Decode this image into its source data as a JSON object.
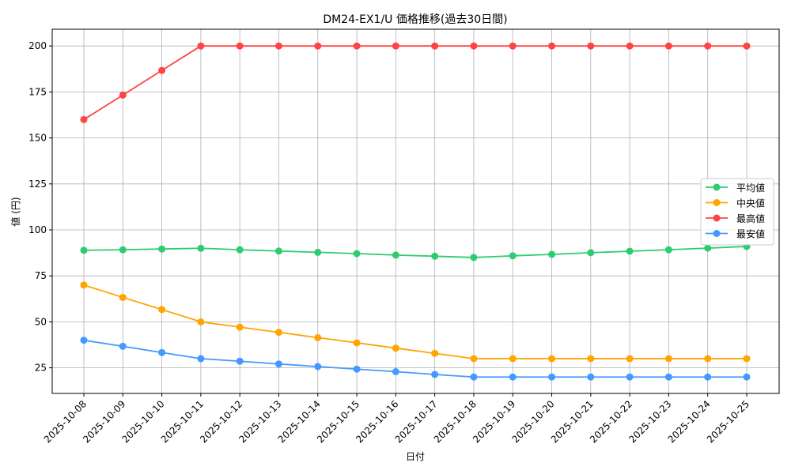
{
  "chart_data": {
    "type": "line",
    "title": "DM24-EX1/U 価格推移(過去30日間)",
    "xlabel": "日付",
    "ylabel": "値 (円)",
    "ylim": [
      11,
      209
    ],
    "yticks": [
      25,
      50,
      75,
      100,
      125,
      150,
      175,
      200
    ],
    "grid": true,
    "legend_position": "center-right",
    "x": [
      "2025-10-08",
      "2025-10-09",
      "2025-10-10",
      "2025-10-11",
      "2025-10-12",
      "2025-10-13",
      "2025-10-14",
      "2025-10-15",
      "2025-10-16",
      "2025-10-17",
      "2025-10-18",
      "2025-10-19",
      "2025-10-20",
      "2025-10-21",
      "2025-10-22",
      "2025-10-23",
      "2025-10-24",
      "2025-10-25"
    ],
    "series": [
      {
        "name": "平均値",
        "color": "#2ecc71",
        "values": [
          88.9,
          89.2,
          89.6,
          90.0,
          89.2,
          88.5,
          87.8,
          87.1,
          86.3,
          85.7,
          85.0,
          85.9,
          86.7,
          87.6,
          88.4,
          89.2,
          90.1,
          91.0
        ]
      },
      {
        "name": "中央値",
        "color": "#ffa500",
        "values": [
          70.0,
          63.3,
          56.7,
          50.0,
          47.1,
          44.3,
          41.4,
          38.6,
          35.7,
          32.9,
          30.0,
          30.0,
          30.0,
          30.0,
          30.0,
          30.0,
          30.0,
          30.0
        ]
      },
      {
        "name": "最高値",
        "color": "#ff4444",
        "values": [
          160.0,
          173.3,
          186.7,
          200,
          200,
          200,
          200,
          200,
          200,
          200,
          200,
          200,
          200,
          200,
          200,
          200,
          200,
          200
        ]
      },
      {
        "name": "最安値",
        "color": "#4499ff",
        "values": [
          40.0,
          36.7,
          33.3,
          30.0,
          28.6,
          27.1,
          25.7,
          24.3,
          22.9,
          21.4,
          20.0,
          20.0,
          20.0,
          20.0,
          20.0,
          20.0,
          20.0,
          20.0
        ]
      }
    ]
  }
}
